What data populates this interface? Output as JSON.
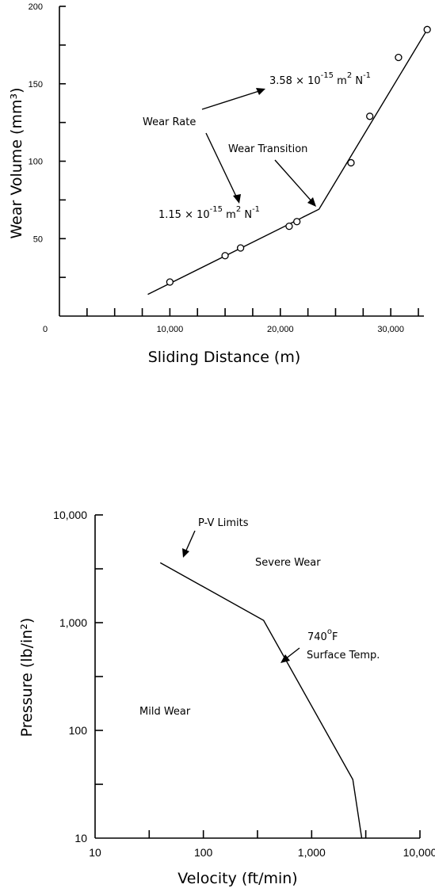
{
  "chart_data": [
    {
      "type": "scatter",
      "title": "",
      "xlabel": "Sliding Distance (m)",
      "ylabel": "Wear Volume (mm³)",
      "xlim": [
        0,
        33000
      ],
      "ylim": [
        0,
        200
      ],
      "x_tick_labels": [
        {
          "value": 0,
          "label": "0"
        },
        {
          "value": 10000,
          "label": "10,000"
        },
        {
          "value": 20000,
          "label": "20,000"
        },
        {
          "value": 30000,
          "label": "30,000"
        }
      ],
      "y_tick_labels": [
        {
          "value": 50,
          "label": "50"
        },
        {
          "value": 100,
          "label": "100"
        },
        {
          "value": 150,
          "label": "150"
        },
        {
          "value": 200,
          "label": "200"
        }
      ],
      "x_minor_step": 2500,
      "y_minor_step": 25,
      "series": [
        {
          "kind": "points",
          "x": [
            10000,
            15000,
            16400,
            20800,
            21500,
            26400,
            28100,
            30700,
            33300
          ],
          "y": [
            22,
            39,
            44,
            58,
            61,
            99,
            129,
            167,
            185
          ]
        },
        {
          "kind": "line",
          "x": [
            8000,
            23500,
            33300
          ],
          "y": [
            14,
            69,
            185
          ]
        }
      ],
      "annotations": {
        "wear_rate": "Wear Rate",
        "rate_high": "3.58 × 10",
        "rate_high_exp": "-15",
        "rate_low": "1.15 × 10",
        "rate_low_exp": "-15",
        "rate_unit": "m",
        "rate_unit_exp1": "2",
        "rate_unit_n": "N",
        "rate_unit_exp2": "-1",
        "transition": "Wear Transition"
      }
    },
    {
      "type": "line",
      "title": "",
      "xlabel": "Velocity (ft/min)",
      "ylabel": "Pressure (lb/in²)",
      "x_scale": "log",
      "y_scale": "log",
      "xlim": [
        10,
        10000
      ],
      "ylim": [
        10,
        10000
      ],
      "x_tick_labels": [
        "10",
        "100",
        "1,000",
        "10,000"
      ],
      "y_tick_labels": [
        "10",
        "100",
        "1,000",
        "10,000"
      ],
      "series": [
        {
          "kind": "line",
          "x": [
            40,
            360,
            2400,
            2900
          ],
          "y": [
            3600,
            1050,
            35,
            10
          ]
        }
      ],
      "annotations": {
        "pv_limits": "P-V Limits",
        "severe": "Severe Wear",
        "mild": "Mild Wear",
        "temp_value": "740",
        "temp_unit": "F",
        "temp_deg": "o",
        "surface": "Surface Temp."
      }
    }
  ]
}
